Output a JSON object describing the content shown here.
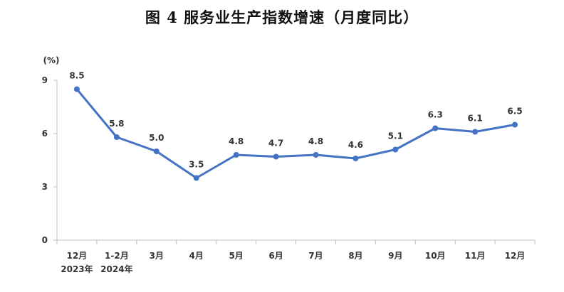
{
  "chart_data": {
    "type": "line",
    "title": "图 4  服务业生产指数增速（月度同比）",
    "ylabel": "(%)",
    "xlabel": "",
    "ylim": [
      0,
      9
    ],
    "yticks": [
      "0",
      "3",
      "6",
      "9"
    ],
    "grid": false,
    "legend": "none",
    "categories": [
      "12月",
      "1-2月",
      "3月",
      "4月",
      "5月",
      "6月",
      "7月",
      "8月",
      "9月",
      "10月",
      "11月",
      "12月"
    ],
    "category_sublabels": [
      "2023年",
      "2024年",
      "",
      "",
      "",
      "",
      "",
      "",
      "",
      "",
      "",
      ""
    ],
    "series": [
      {
        "name": "服务业生产指数增速",
        "values": [
          8.5,
          5.8,
          5.0,
          3.5,
          4.8,
          4.7,
          4.8,
          4.6,
          5.1,
          6.3,
          6.1,
          6.5
        ],
        "labels": [
          "8.5",
          "5.8",
          "5.0",
          "3.5",
          "4.8",
          "4.7",
          "4.8",
          "4.6",
          "5.1",
          "6.3",
          "6.1",
          "6.5"
        ],
        "color": "#4472C4"
      }
    ],
    "axis_color": "#BFBFBF"
  }
}
